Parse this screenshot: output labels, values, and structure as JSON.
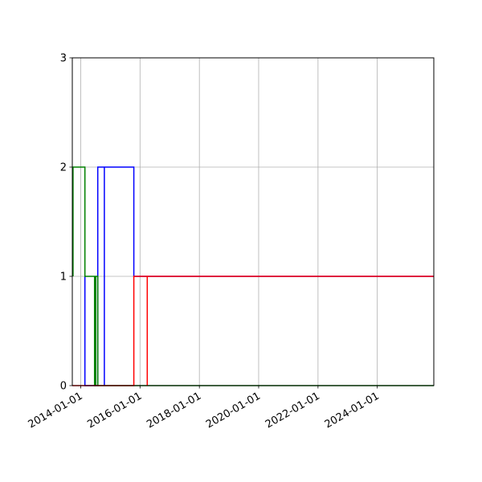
{
  "chart_data": {
    "type": "line",
    "step": true,
    "title": "",
    "xlabel": "",
    "ylabel": "",
    "xlim": [
      "2013-09-19",
      "2025-11-27"
    ],
    "ylim": [
      0,
      3
    ],
    "grid": true,
    "x_ticks": [
      "2014-01-01",
      "2016-01-01",
      "2018-01-01",
      "2020-01-01",
      "2022-01-01",
      "2024-01-01"
    ],
    "y_ticks": [
      0,
      1,
      2,
      3
    ],
    "series": [
      {
        "color": "#0000ff",
        "x": [
          "2014-02-21",
          "2014-02-21",
          "2014-07-30",
          "2014-07-30",
          "2014-10-19",
          "2014-10-19",
          "2014-10-19",
          "2015-10-17",
          "2015-10-17",
          "2025-11-27"
        ],
        "y": [
          1,
          0,
          0,
          2,
          2,
          0,
          2,
          2,
          1,
          1
        ]
      },
      {
        "color": "#008000",
        "x": [
          "2013-09-28",
          "2013-09-28",
          "2014-02-21",
          "2014-02-21",
          "2014-06-20",
          "2014-06-20",
          "2014-07-05",
          "2014-07-05",
          "2014-07-30",
          "2014-07-30",
          "2025-11-27"
        ],
        "y": [
          1,
          2,
          2,
          1,
          1,
          0,
          0,
          1,
          1,
          0,
          0
        ]
      },
      {
        "color": "#ff0000",
        "x": [
          "2013-09-19",
          "2015-10-17",
          "2015-10-17",
          "2016-03-30",
          "2016-03-30",
          "2016-03-30",
          "2025-11-27"
        ],
        "y": [
          0,
          0,
          1,
          1,
          0,
          1,
          1
        ]
      }
    ]
  }
}
